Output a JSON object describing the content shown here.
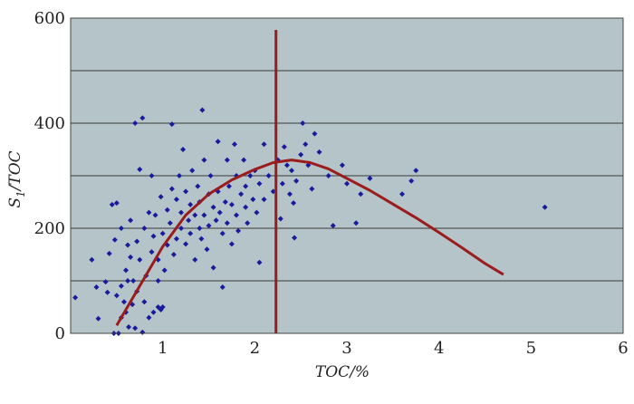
{
  "chart_data": {
    "type": "scatter",
    "title": "",
    "xlabel": "TOC/%",
    "ylabel": {
      "base": "S",
      "subscript": "1",
      "rest": "/TOC"
    },
    "xlim": [
      0,
      6
    ],
    "ylim": [
      0,
      600
    ],
    "xticks": [
      1,
      2,
      3,
      4,
      5,
      6
    ],
    "yticks": [
      0,
      200,
      400,
      600
    ],
    "grid": "horizontal",
    "legend": "none",
    "colors": {
      "plot_background": "#b4c4c8",
      "grid": "#3a3a3a",
      "points": "#1a1a9c",
      "trend": "#9a1c1c",
      "vline": "#9a1c1c"
    },
    "vertical_line_x": 2.23,
    "trend_curve": [
      [
        0.5,
        15
      ],
      [
        0.75,
        90
      ],
      [
        1.0,
        165
      ],
      [
        1.25,
        225
      ],
      [
        1.5,
        265
      ],
      [
        1.75,
        292
      ],
      [
        2.0,
        312
      ],
      [
        2.2,
        325
      ],
      [
        2.4,
        330
      ],
      [
        2.6,
        325
      ],
      [
        2.8,
        313
      ],
      [
        3.0,
        295
      ],
      [
        3.25,
        272
      ],
      [
        3.5,
        246
      ],
      [
        3.75,
        220
      ],
      [
        4.0,
        192
      ],
      [
        4.25,
        163
      ],
      [
        4.5,
        133
      ],
      [
        4.7,
        112
      ]
    ],
    "series": [
      {
        "points": [
          [
            0.05,
            68
          ],
          [
            0.23,
            140
          ],
          [
            0.3,
            28
          ],
          [
            0.28,
            88
          ],
          [
            0.38,
            98
          ],
          [
            0.4,
            78
          ],
          [
            0.42,
            152
          ],
          [
            0.45,
            245
          ],
          [
            0.48,
            178
          ],
          [
            0.5,
            248
          ],
          [
            0.5,
            72
          ],
          [
            0.47,
            0
          ],
          [
            0.52,
            0
          ],
          [
            0.55,
            30
          ],
          [
            0.55,
            90
          ],
          [
            0.55,
            200
          ],
          [
            0.58,
            60
          ],
          [
            0.6,
            120
          ],
          [
            0.6,
            40
          ],
          [
            0.62,
            168
          ],
          [
            0.62,
            100
          ],
          [
            0.63,
            12
          ],
          [
            0.65,
            215
          ],
          [
            0.65,
            145
          ],
          [
            0.67,
            55
          ],
          [
            0.68,
            100
          ],
          [
            0.7,
            400
          ],
          [
            0.7,
            10
          ],
          [
            0.72,
            80
          ],
          [
            0.72,
            175
          ],
          [
            0.75,
            140
          ],
          [
            0.75,
            312
          ],
          [
            0.78,
            410
          ],
          [
            0.78,
            2
          ],
          [
            0.8,
            60
          ],
          [
            0.8,
            200
          ],
          [
            0.82,
            110
          ],
          [
            0.85,
            230
          ],
          [
            0.85,
            30
          ],
          [
            0.88,
            155
          ],
          [
            0.88,
            300
          ],
          [
            0.9,
            40
          ],
          [
            0.9,
            185
          ],
          [
            0.92,
            225
          ],
          [
            0.95,
            100
          ],
          [
            0.95,
            50
          ],
          [
            0.95,
            140
          ],
          [
            0.98,
            45
          ],
          [
            0.98,
            260
          ],
          [
            1.0,
            190
          ],
          [
            1.0,
            50
          ],
          [
            1.02,
            120
          ],
          [
            1.05,
            235
          ],
          [
            1.05,
            168
          ],
          [
            1.08,
            210
          ],
          [
            1.1,
            275
          ],
          [
            1.1,
            398
          ],
          [
            1.12,
            150
          ],
          [
            1.15,
            255
          ],
          [
            1.15,
            180
          ],
          [
            1.18,
            300
          ],
          [
            1.2,
            200
          ],
          [
            1.2,
            230
          ],
          [
            1.22,
            350
          ],
          [
            1.25,
            170
          ],
          [
            1.25,
            270
          ],
          [
            1.28,
            215
          ],
          [
            1.3,
            245
          ],
          [
            1.3,
            190
          ],
          [
            1.32,
            310
          ],
          [
            1.35,
            140
          ],
          [
            1.35,
            225
          ],
          [
            1.38,
            280
          ],
          [
            1.4,
            250
          ],
          [
            1.4,
            200
          ],
          [
            1.42,
            180
          ],
          [
            1.43,
            425
          ],
          [
            1.45,
            330
          ],
          [
            1.45,
            225
          ],
          [
            1.48,
            160
          ],
          [
            1.5,
            265
          ],
          [
            1.5,
            205
          ],
          [
            1.52,
            300
          ],
          [
            1.55,
            240
          ],
          [
            1.55,
            125
          ],
          [
            1.58,
            215
          ],
          [
            1.6,
            365
          ],
          [
            1.6,
            270
          ],
          [
            1.62,
            230
          ],
          [
            1.65,
            190
          ],
          [
            1.65,
            88
          ],
          [
            1.68,
            250
          ],
          [
            1.7,
            330
          ],
          [
            1.7,
            210
          ],
          [
            1.72,
            280
          ],
          [
            1.75,
            170
          ],
          [
            1.75,
            245
          ],
          [
            1.78,
            360
          ],
          [
            1.8,
            225
          ],
          [
            1.8,
            300
          ],
          [
            1.82,
            195
          ],
          [
            1.85,
            265
          ],
          [
            1.88,
            330
          ],
          [
            1.9,
            240
          ],
          [
            1.9,
            280
          ],
          [
            1.92,
            210
          ],
          [
            1.95,
            300
          ],
          [
            1.98,
            255
          ],
          [
            2.0,
            310
          ],
          [
            2.02,
            230
          ],
          [
            2.05,
            135
          ],
          [
            2.05,
            285
          ],
          [
            2.1,
            360
          ],
          [
            2.1,
            255
          ],
          [
            2.15,
            300
          ],
          [
            2.2,
            270
          ],
          [
            2.25,
            330
          ],
          [
            2.28,
            218
          ],
          [
            2.3,
            285
          ],
          [
            2.32,
            355
          ],
          [
            2.35,
            320
          ],
          [
            2.38,
            265
          ],
          [
            2.4,
            310
          ],
          [
            2.42,
            248
          ],
          [
            2.43,
            182
          ],
          [
            2.45,
            290
          ],
          [
            2.5,
            340
          ],
          [
            2.52,
            400
          ],
          [
            2.55,
            360
          ],
          [
            2.58,
            320
          ],
          [
            2.62,
            275
          ],
          [
            2.65,
            380
          ],
          [
            2.7,
            345
          ],
          [
            2.8,
            300
          ],
          [
            2.85,
            205
          ],
          [
            2.95,
            320
          ],
          [
            3.0,
            285
          ],
          [
            3.1,
            210
          ],
          [
            3.15,
            265
          ],
          [
            3.25,
            295
          ],
          [
            3.6,
            265
          ],
          [
            3.7,
            290
          ],
          [
            3.75,
            310
          ],
          [
            5.15,
            240
          ]
        ]
      }
    ]
  }
}
